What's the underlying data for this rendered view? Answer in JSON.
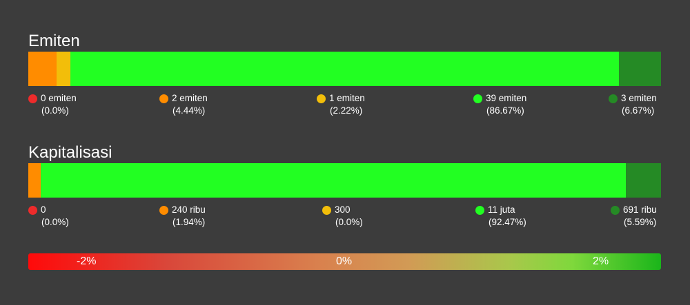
{
  "chart_data": [
    {
      "type": "bar",
      "title": "Emiten",
      "colors": [
        "#ee2b2b",
        "#ff8c00",
        "#f2be0a",
        "#22ff22",
        "#258a25"
      ],
      "segments": [
        {
          "value": 0,
          "label": "0 emiten",
          "percent": "(0.0%)",
          "share": 0.0
        },
        {
          "value": 2,
          "label": "2 emiten",
          "percent": "(4.44%)",
          "share": 4.44
        },
        {
          "value": 1,
          "label": "1 emiten",
          "percent": "(2.22%)",
          "share": 2.22
        },
        {
          "value": 39,
          "label": "39 emiten",
          "percent": "(86.67%)",
          "share": 86.67
        },
        {
          "value": 3,
          "label": "3 emiten",
          "percent": "(6.67%)",
          "share": 6.67
        }
      ]
    },
    {
      "type": "bar",
      "title": "Kapitalisasi",
      "colors": [
        "#ee2b2b",
        "#ff8c00",
        "#f2be0a",
        "#22ff22",
        "#258a25"
      ],
      "segments": [
        {
          "value": 0,
          "label": "0",
          "percent": "(0.0%)",
          "share": 0.0
        },
        {
          "value": 240000,
          "label": "240 ribu",
          "percent": "(1.94%)",
          "share": 1.94
        },
        {
          "value": 300,
          "label": "300",
          "percent": "(0.0%)",
          "share": 0.0
        },
        {
          "value": 11000000,
          "label": "11 juta",
          "percent": "(92.47%)",
          "share": 92.47
        },
        {
          "value": 691000,
          "label": "691 ribu",
          "percent": "(5.59%)",
          "share": 5.59
        }
      ]
    }
  ],
  "scale": {
    "labels": [
      "-2%",
      "0%",
      "2%"
    ],
    "colors": [
      "#ff0a0a",
      "#d9814e",
      "#1ab51a"
    ]
  }
}
